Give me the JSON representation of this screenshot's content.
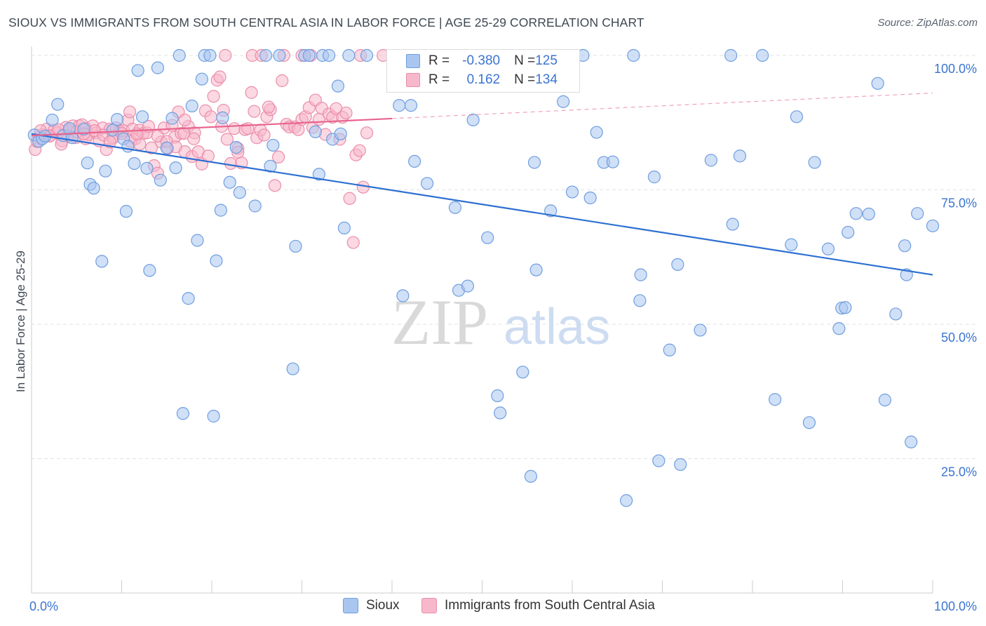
{
  "title": "SIOUX VS IMMIGRANTS FROM SOUTH CENTRAL ASIA IN LABOR FORCE | AGE 25-29 CORRELATION CHART",
  "source": "Source: ZipAtlas.com",
  "watermark": {
    "zip": "ZIP",
    "atlas": "atlas"
  },
  "colors": {
    "sioux_fill": "#a9c6f0",
    "sioux_stroke": "#6f9ee0",
    "sioux_line": "#2d6fd2",
    "imm_fill": "#f7b8cb",
    "imm_stroke": "#ea8eab",
    "imm_line": "#e8648e",
    "axis_label": "#3b75d1",
    "grid": "#e3e3e3"
  },
  "legend": {
    "rows": [
      {
        "r_label": "R = ",
        "r_value": "-0.380",
        "n_label": "N = ",
        "n_value": "125"
      },
      {
        "r_label": "R = ",
        "r_value": "0.162",
        "n_label": "N = ",
        "n_value": "134"
      }
    ]
  },
  "chart_data": {
    "type": "scatter",
    "title": "SIOUX VS IMMIGRANTS FROM SOUTH CENTRAL ASIA IN LABOR FORCE | AGE 25-29 CORRELATION CHART",
    "xlabel": "",
    "ylabel": "In Labor Force | Age 25-29",
    "xlim": [
      0,
      100
    ],
    "ylim": [
      0,
      100
    ],
    "x_tick_labels": [
      "0.0%",
      "100.0%"
    ],
    "y_tick_labels": [
      "25.0%",
      "50.0%",
      "75.0%",
      "100.0%"
    ],
    "y_tick_values": [
      25,
      50,
      75,
      100
    ],
    "legend_position": "bottom-center",
    "series": [
      {
        "name": "Sioux",
        "r": -0.38,
        "n": 125,
        "trend": {
          "x0": 0,
          "y0": 85.4,
          "x1": 100,
          "y1": 59.2,
          "x_end": 100
        },
        "points": [
          [
            0.3,
            85.2
          ],
          [
            0.8,
            84.0
          ],
          [
            1.2,
            84.5
          ],
          [
            1.5,
            85.0
          ],
          [
            2.3,
            88.0
          ],
          [
            2.9,
            90.9
          ],
          [
            3.5,
            85.1
          ],
          [
            4.5,
            84.7
          ],
          [
            4.2,
            86.4
          ],
          [
            5.8,
            86.3
          ],
          [
            6.2,
            80.0
          ],
          [
            6.5,
            76.0
          ],
          [
            6.9,
            75.3
          ],
          [
            7.8,
            61.7
          ],
          [
            8.2,
            78.5
          ],
          [
            9.0,
            86.1
          ],
          [
            9.5,
            88.1
          ],
          [
            10.2,
            84.5
          ],
          [
            10.7,
            83.1
          ],
          [
            10.5,
            71.0
          ],
          [
            11.4,
            79.9
          ],
          [
            11.8,
            97.2
          ],
          [
            12.3,
            88.6
          ],
          [
            12.8,
            79.0
          ],
          [
            13.1,
            60.0
          ],
          [
            14.0,
            97.7
          ],
          [
            14.3,
            76.8
          ],
          [
            15.0,
            82.8
          ],
          [
            15.6,
            88.3
          ],
          [
            16.0,
            79.1
          ],
          [
            16.4,
            100.0
          ],
          [
            16.8,
            33.4
          ],
          [
            17.4,
            54.8
          ],
          [
            17.8,
            90.6
          ],
          [
            18.4,
            65.6
          ],
          [
            18.9,
            95.6
          ],
          [
            19.2,
            100.0
          ],
          [
            19.8,
            100.0
          ],
          [
            20.2,
            32.9
          ],
          [
            20.5,
            61.8
          ],
          [
            21.0,
            71.2
          ],
          [
            21.2,
            88.4
          ],
          [
            22.0,
            76.4
          ],
          [
            22.7,
            82.9
          ],
          [
            23.1,
            74.5
          ],
          [
            24.8,
            72.0
          ],
          [
            26.0,
            100.0
          ],
          [
            26.5,
            79.4
          ],
          [
            26.8,
            83.3
          ],
          [
            27.5,
            100.0
          ],
          [
            29.0,
            41.7
          ],
          [
            29.3,
            64.5
          ],
          [
            30.3,
            100.0
          ],
          [
            30.8,
            100.0
          ],
          [
            31.5,
            85.8
          ],
          [
            31.9,
            77.9
          ],
          [
            32.3,
            100.0
          ],
          [
            33.0,
            100.0
          ],
          [
            33.4,
            84.4
          ],
          [
            34.0,
            94.3
          ],
          [
            34.3,
            85.4
          ],
          [
            34.7,
            67.9
          ],
          [
            35.2,
            100.0
          ],
          [
            37.2,
            100.0
          ],
          [
            40.8,
            90.7
          ],
          [
            41.2,
            55.3
          ],
          [
            42.1,
            90.7
          ],
          [
            42.5,
            80.3
          ],
          [
            43.9,
            76.2
          ],
          [
            47.0,
            71.7
          ],
          [
            47.4,
            56.3
          ],
          [
            48.4,
            57.1
          ],
          [
            49.0,
            88.0
          ],
          [
            50.6,
            66.1
          ],
          [
            51.7,
            36.7
          ],
          [
            52.0,
            33.5
          ],
          [
            54.5,
            41.1
          ],
          [
            55.4,
            21.7
          ],
          [
            55.8,
            80.1
          ],
          [
            56.0,
            60.1
          ],
          [
            57.6,
            71.1
          ],
          [
            59.0,
            91.4
          ],
          [
            60.0,
            74.6
          ],
          [
            61.2,
            100.0
          ],
          [
            62.0,
            73.5
          ],
          [
            62.7,
            85.7
          ],
          [
            63.5,
            80.1
          ],
          [
            64.5,
            80.2
          ],
          [
            66.0,
            17.2
          ],
          [
            66.8,
            100.0
          ],
          [
            67.5,
            54.4
          ],
          [
            67.6,
            59.2
          ],
          [
            69.1,
            77.4
          ],
          [
            69.6,
            24.6
          ],
          [
            70.8,
            45.2
          ],
          [
            71.7,
            61.1
          ],
          [
            72.0,
            23.9
          ],
          [
            74.2,
            48.9
          ],
          [
            75.4,
            80.5
          ],
          [
            77.6,
            100.0
          ],
          [
            77.8,
            68.6
          ],
          [
            78.6,
            81.3
          ],
          [
            81.1,
            100.0
          ],
          [
            82.5,
            36.0
          ],
          [
            84.3,
            64.8
          ],
          [
            84.9,
            88.6
          ],
          [
            86.3,
            31.7
          ],
          [
            86.9,
            80.1
          ],
          [
            88.4,
            64.0
          ],
          [
            89.6,
            49.2
          ],
          [
            89.9,
            53.0
          ],
          [
            90.3,
            53.1
          ],
          [
            90.6,
            67.1
          ],
          [
            91.5,
            70.6
          ],
          [
            92.9,
            70.5
          ],
          [
            93.9,
            94.8
          ],
          [
            94.7,
            35.9
          ],
          [
            95.9,
            51.9
          ],
          [
            96.9,
            64.6
          ],
          [
            97.1,
            59.2
          ],
          [
            97.6,
            28.1
          ],
          [
            98.3,
            70.6
          ],
          [
            100.0,
            68.3
          ]
        ]
      },
      {
        "name": "Immigrants from South Central Asia",
        "r": 0.162,
        "n": 134,
        "trend": {
          "x0": 0,
          "y0": 85.1,
          "x1": 100,
          "y1": 93.0,
          "x_end": 40
        },
        "points": [
          [
            0.4,
            82.5
          ],
          [
            0.8,
            84.8
          ],
          [
            1.2,
            85.3
          ],
          [
            1.7,
            86.3
          ],
          [
            2.1,
            85.1
          ],
          [
            2.5,
            86.1
          ],
          [
            2.9,
            85.6
          ],
          [
            3.4,
            84.1
          ],
          [
            3.8,
            86.6
          ],
          [
            4.1,
            86.0
          ],
          [
            4.6,
            86.9
          ],
          [
            4.9,
            84.7
          ],
          [
            5.3,
            86.9
          ],
          [
            5.6,
            87.1
          ],
          [
            6.0,
            84.5
          ],
          [
            6.3,
            85.3
          ],
          [
            6.8,
            86.9
          ],
          [
            7.2,
            85.6
          ],
          [
            7.5,
            84.1
          ],
          [
            7.9,
            86.5
          ],
          [
            8.3,
            82.5
          ],
          [
            8.7,
            86.3
          ],
          [
            9.1,
            84.8
          ],
          [
            9.4,
            86.5
          ],
          [
            9.8,
            85.9
          ],
          [
            10.2,
            86.0
          ],
          [
            10.7,
            88.0
          ],
          [
            10.9,
            89.5
          ],
          [
            11.2,
            86.3
          ],
          [
            11.5,
            84.5
          ],
          [
            12.0,
            86.1
          ],
          [
            12.4,
            85.5
          ],
          [
            12.8,
            85.6
          ],
          [
            13.3,
            82.8
          ],
          [
            13.6,
            79.5
          ],
          [
            14.0,
            78.1
          ],
          [
            14.4,
            83.9
          ],
          [
            14.7,
            86.5
          ],
          [
            15.1,
            82.7
          ],
          [
            15.6,
            87.0
          ],
          [
            15.9,
            84.8
          ],
          [
            16.3,
            89.5
          ],
          [
            16.6,
            85.5
          ],
          [
            17.0,
            82.1
          ],
          [
            17.4,
            86.8
          ],
          [
            17.8,
            81.2
          ],
          [
            18.1,
            85.6
          ],
          [
            18.5,
            82.1
          ],
          [
            18.9,
            79.8
          ],
          [
            19.3,
            89.7
          ],
          [
            19.6,
            81.3
          ],
          [
            19.9,
            88.6
          ],
          [
            20.2,
            92.4
          ],
          [
            20.6,
            95.4
          ],
          [
            21.1,
            86.8
          ],
          [
            21.3,
            89.8
          ],
          [
            21.7,
            84.4
          ],
          [
            22.1,
            79.9
          ],
          [
            22.5,
            86.4
          ],
          [
            22.9,
            82.7
          ],
          [
            23.3,
            80.0
          ],
          [
            23.7,
            86.2
          ],
          [
            24.0,
            86.4
          ],
          [
            24.4,
            93.1
          ],
          [
            24.7,
            89.6
          ],
          [
            25.0,
            84.7
          ],
          [
            25.4,
            86.1
          ],
          [
            25.8,
            85.2
          ],
          [
            26.1,
            88.6
          ],
          [
            26.5,
            89.9
          ],
          [
            27.0,
            75.8
          ],
          [
            27.4,
            81.1
          ],
          [
            27.8,
            95.3
          ],
          [
            28.3,
            87.2
          ],
          [
            28.6,
            86.7
          ],
          [
            29.2,
            86.7
          ],
          [
            29.6,
            86.2
          ],
          [
            30.0,
            88.1
          ],
          [
            30.4,
            88.6
          ],
          [
            30.8,
            90.3
          ],
          [
            31.2,
            86.6
          ],
          [
            31.5,
            91.7
          ],
          [
            31.9,
            88.1
          ],
          [
            32.2,
            90.2
          ],
          [
            32.6,
            85.3
          ],
          [
            33.0,
            89.1
          ],
          [
            33.4,
            88.5
          ],
          [
            33.8,
            90.1
          ],
          [
            34.2,
            84.4
          ],
          [
            34.5,
            88.5
          ],
          [
            34.9,
            89.3
          ],
          [
            35.3,
            73.4
          ],
          [
            35.7,
            65.2
          ],
          [
            36.0,
            81.5
          ],
          [
            36.4,
            82.3
          ],
          [
            36.8,
            75.5
          ],
          [
            37.2,
            85.6
          ],
          [
            0.6,
            84.0
          ],
          [
            1.0,
            86.0
          ],
          [
            2.0,
            85.0
          ],
          [
            3.0,
            86.2
          ],
          [
            4.0,
            85.0
          ],
          [
            5.0,
            85.8
          ],
          [
            6.0,
            86.4
          ],
          [
            7.0,
            86.0
          ],
          [
            8.0,
            85.2
          ],
          [
            9.0,
            84.6
          ],
          [
            10.0,
            85.5
          ],
          [
            11.0,
            84.0
          ],
          [
            12.0,
            83.5
          ],
          [
            13.0,
            86.8
          ],
          [
            14.0,
            85.0
          ],
          [
            15.0,
            84.0
          ],
          [
            16.0,
            83.0
          ],
          [
            17.0,
            88.0
          ],
          [
            18.0,
            84.5
          ],
          [
            21.5,
            100.0
          ],
          [
            24.5,
            100.0
          ],
          [
            25.5,
            100.0
          ],
          [
            28.0,
            100.0
          ],
          [
            30.0,
            100.0
          ],
          [
            31.0,
            100.0
          ],
          [
            36.5,
            100.0
          ],
          [
            39.0,
            100.0
          ],
          [
            3.3,
            83.5
          ],
          [
            5.8,
            85.4
          ],
          [
            8.7,
            83.9
          ],
          [
            11.7,
            85.4
          ],
          [
            16.9,
            85.5
          ],
          [
            20.9,
            96.0
          ],
          [
            22.9,
            82.0
          ],
          [
            26.3,
            90.4
          ]
        ]
      }
    ]
  },
  "bottom_legend": {
    "items": [
      {
        "label": "Sioux"
      },
      {
        "label": "Immigrants from South Central Asia"
      }
    ]
  }
}
